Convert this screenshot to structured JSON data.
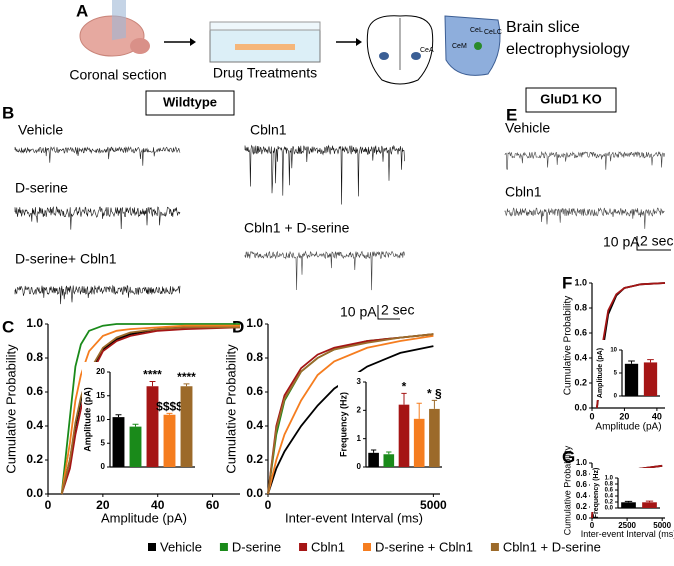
{
  "panel_labels": [
    "A",
    "B",
    "C",
    "D",
    "E",
    "F",
    "G"
  ],
  "schematic": {
    "steps": [
      "Coronal section",
      "Drug Treatments",
      "Brain slice",
      "electrophysiology"
    ],
    "regions": [
      "CeA",
      "CeL",
      "CeLC",
      "CeM"
    ]
  },
  "wildtype": {
    "title": "Wildtype",
    "traces": [
      "Vehicle",
      "D-serine",
      "D-serine+ Cbln1",
      "Cbln1",
      "Cbln1 + D-serine"
    ],
    "scale_y": "10 pA",
    "scale_x": "2 sec"
  },
  "gluD1_ko": {
    "title": "GluD1 KO",
    "traces": [
      "Vehicle",
      "Cbln1"
    ],
    "scale_y": "10 pA",
    "scale_x": "2 sec"
  },
  "chart_data": [
    {
      "type": "line",
      "xlabel": "Amplitude (pA)",
      "ylabel": "Cumulative Probability",
      "xlim": [
        0,
        70
      ],
      "ylim": [
        0,
        1
      ],
      "xticks": [
        0,
        20,
        40,
        60
      ],
      "yticks": [
        {
          "value": 0,
          "label": "0.0"
        },
        {
          "value": 0.2,
          "label": "0.2"
        },
        {
          "value": 0.4,
          "label": "0.4"
        },
        {
          "value": 0.6,
          "label": "0.6"
        },
        {
          "value": 0.8,
          "label": "0.8"
        },
        {
          "value": 1,
          "label": "1.0"
        }
      ],
      "x": [
        5,
        8,
        10,
        12,
        15,
        20,
        25,
        30,
        40,
        50,
        70
      ],
      "series": [
        {
          "name": "Vehicle",
          "color": "#000000",
          "values": [
            0,
            0.2,
            0.4,
            0.55,
            0.7,
            0.85,
            0.91,
            0.94,
            0.97,
            0.98,
            0.99
          ]
        },
        {
          "name": "D-serine",
          "color": "#1a8a1a",
          "values": [
            0,
            0.45,
            0.75,
            0.88,
            0.96,
            0.99,
            1,
            1,
            1,
            1,
            1
          ]
        },
        {
          "name": "Cbln1",
          "color": "#a51515",
          "values": [
            0,
            0.15,
            0.35,
            0.5,
            0.68,
            0.84,
            0.9,
            0.93,
            0.96,
            0.97,
            0.98
          ]
        },
        {
          "name": "D-serine + Cbln1",
          "color": "#f57d1f",
          "values": [
            0,
            0.3,
            0.55,
            0.7,
            0.84,
            0.93,
            0.96,
            0.97,
            0.98,
            0.99,
            0.99
          ]
        },
        {
          "name": "Cbln1 + D-serine",
          "color": "#9c6a2a",
          "values": [
            0,
            0.2,
            0.42,
            0.57,
            0.72,
            0.86,
            0.92,
            0.95,
            0.97,
            0.98,
            0.98
          ]
        }
      ]
    },
    {
      "type": "bar",
      "ylabel": "Amplitude (pA)",
      "ylim": [
        0,
        20
      ],
      "yticks": [
        0,
        5,
        10,
        15,
        20
      ],
      "values": [
        10.5,
        8.5,
        17,
        11,
        17
      ],
      "errors": [
        0.5,
        0.5,
        1,
        0.3,
        0.5
      ],
      "colors": [
        "#000000",
        "#1a8a1a",
        "#a51515",
        "#f57d1f",
        "#9c6a2a"
      ],
      "annotations": [
        null,
        null,
        "****",
        "$$$$",
        "****"
      ]
    },
    {
      "type": "line",
      "xlabel": "Inter-event Interval (ms)",
      "ylabel": "Cumulative Probability",
      "xlim": [
        0,
        5200
      ],
      "ylim": [
        0,
        1
      ],
      "xticks": [
        0,
        5000
      ],
      "yticks": [
        {
          "value": 0,
          "label": "0.0"
        },
        {
          "value": 0.2,
          "label": "0.2"
        },
        {
          "value": 0.4,
          "label": "0.4"
        },
        {
          "value": 0.6,
          "label": "0.6"
        },
        {
          "value": 0.8,
          "label": "0.8"
        },
        {
          "value": 1,
          "label": "1.0"
        }
      ],
      "x": [
        0,
        250,
        500,
        1000,
        1500,
        2000,
        3000,
        4000,
        5000
      ],
      "series": [
        {
          "name": "Vehicle",
          "color": "#000000",
          "values": [
            0,
            0.15,
            0.25,
            0.4,
            0.52,
            0.62,
            0.75,
            0.83,
            0.87
          ]
        },
        {
          "name": "D-serine",
          "color": "#1a8a1a",
          "values": [
            0,
            0.35,
            0.55,
            0.72,
            0.8,
            0.85,
            0.9,
            0.92,
            0.94
          ]
        },
        {
          "name": "Cbln1",
          "color": "#a51515",
          "values": [
            0,
            0.4,
            0.58,
            0.74,
            0.82,
            0.86,
            0.9,
            0.92,
            0.94
          ]
        },
        {
          "name": "D-serine + Cbln1",
          "color": "#f57d1f",
          "values": [
            0,
            0.2,
            0.35,
            0.55,
            0.7,
            0.78,
            0.86,
            0.9,
            0.93
          ]
        },
        {
          "name": "Cbln1 + D-serine",
          "color": "#9c6a2a",
          "values": [
            0,
            0.38,
            0.56,
            0.72,
            0.8,
            0.85,
            0.89,
            0.92,
            0.94
          ]
        }
      ]
    },
    {
      "type": "bar",
      "ylabel": "Frequency (Hz)",
      "ylim": [
        0,
        3
      ],
      "yticks": [
        0,
        1,
        2,
        3
      ],
      "values": [
        0.5,
        0.45,
        2.2,
        1.7,
        2.05
      ],
      "errors": [
        0.1,
        0.08,
        0.4,
        0.55,
        0.3
      ],
      "colors": [
        "#000000",
        "#1a8a1a",
        "#a51515",
        "#f57d1f",
        "#9c6a2a"
      ],
      "annotations": [
        null,
        null,
        "*",
        null,
        "* §"
      ]
    },
    {
      "type": "line",
      "xlabel": "Amplitude (pA)",
      "ylabel": "Cumulative Probability",
      "xlim": [
        0,
        45
      ],
      "ylim": [
        0,
        1
      ],
      "xticks": [
        0,
        20,
        40
      ],
      "yticks": [
        {
          "value": 0,
          "label": "0.0"
        },
        {
          "value": 0.2,
          "label": "0.2"
        },
        {
          "value": 0.4,
          "label": "0.4"
        },
        {
          "value": 0.6,
          "label": "0.6"
        },
        {
          "value": 0.8,
          "label": "0.8"
        },
        {
          "value": 1,
          "label": "1.0"
        }
      ],
      "x": [
        3,
        5,
        7,
        10,
        15,
        20,
        30,
        45
      ],
      "series": [
        {
          "name": "Vehicle",
          "color": "#000000",
          "values": [
            0,
            0.2,
            0.5,
            0.75,
            0.9,
            0.96,
            0.99,
            1
          ]
        },
        {
          "name": "Cbln1",
          "color": "#a51515",
          "values": [
            0,
            0.25,
            0.55,
            0.78,
            0.91,
            0.96,
            0.99,
            1
          ]
        }
      ]
    },
    {
      "type": "bar",
      "ylabel": "Amplitude (pA)",
      "ylim": [
        0,
        10
      ],
      "yticks": [
        0,
        5,
        10
      ],
      "values": [
        7,
        7.3
      ],
      "errors": [
        0.6,
        0.6
      ],
      "colors": [
        "#000000",
        "#a51515"
      ]
    },
    {
      "type": "line",
      "xlabel": "Inter-event Interval (ms)",
      "ylabel": "Cumulative Probability",
      "xlim": [
        0,
        5200
      ],
      "ylim": [
        0,
        1
      ],
      "xticks": [
        0,
        2500,
        5000
      ],
      "yticks": [
        {
          "value": 0,
          "label": "0.0"
        },
        {
          "value": 0.2,
          "label": "0.2"
        },
        {
          "value": 0.4,
          "label": "0.4"
        },
        {
          "value": 0.6,
          "label": "0.6"
        },
        {
          "value": 0.8,
          "label": "0.8"
        },
        {
          "value": 1,
          "label": "1.0"
        }
      ],
      "x": [
        0,
        100,
        250,
        500,
        1000,
        1500,
        2500,
        3500,
        5000
      ],
      "series": [
        {
          "name": "Vehicle",
          "color": "#000000",
          "values": [
            0,
            0.3,
            0.5,
            0.65,
            0.75,
            0.8,
            0.86,
            0.9,
            0.95
          ]
        },
        {
          "name": "Cbln1",
          "color": "#a51515",
          "values": [
            0,
            0.45,
            0.6,
            0.7,
            0.77,
            0.81,
            0.86,
            0.9,
            0.95
          ]
        }
      ]
    },
    {
      "type": "bar",
      "ylabel": "Frequency (Hz)",
      "ylim": [
        0,
        1
      ],
      "yticks": [
        {
          "value": 0,
          "label": "0.0"
        },
        {
          "value": 0.2,
          "label": "0.2"
        },
        {
          "value": 0.4,
          "label": "0.4"
        },
        {
          "value": 0.6,
          "label": "0.6"
        },
        {
          "value": 0.8,
          "label": "0.8"
        },
        {
          "value": 1,
          "label": "1.0"
        }
      ],
      "values": [
        0.19,
        0.19
      ],
      "errors": [
        0.03,
        0.04
      ],
      "colors": [
        "#000000",
        "#a51515"
      ]
    }
  ]
}
